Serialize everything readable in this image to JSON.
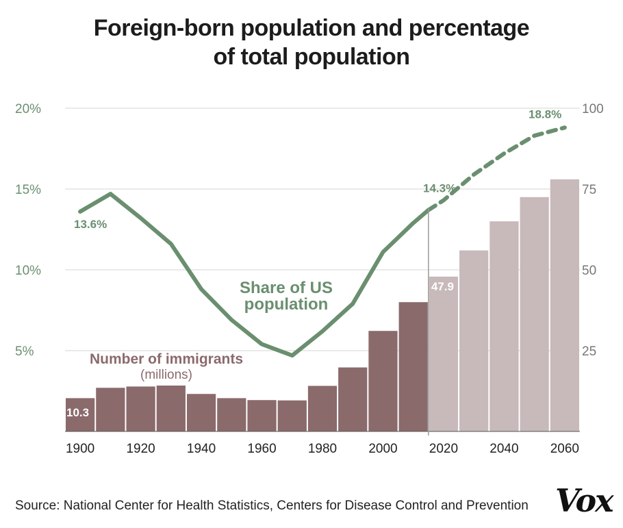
{
  "title_line1": "Foreign-born population and percentage",
  "title_line2": "of total population",
  "source": "Source: National Center for Health Statistics, Centers for Disease Control and Prevention",
  "logo": "Vox",
  "colors": {
    "actual_bar": "#8b6a6c",
    "projected_bar": "#c8b9ba",
    "line": "#6a8f6f",
    "grid": "#d6d6d6",
    "divider": "#9a9a9a"
  },
  "chart_data": {
    "type": "bar",
    "categories": [
      "1900",
      "1910",
      "1920",
      "1930",
      "1940",
      "1950",
      "1960",
      "1970",
      "1980",
      "1990",
      "2000",
      "2010",
      "2020",
      "2030",
      "2040",
      "2050",
      "2060"
    ],
    "x_tick_labels": [
      "1900",
      "1920",
      "1940",
      "1960",
      "1980",
      "2000",
      "2020",
      "2040",
      "2060"
    ],
    "left_axis_labels": [
      "5%",
      "10%",
      "15%",
      "20%"
    ],
    "right_axis_labels": [
      "25",
      "50",
      "75",
      "100"
    ],
    "left_axis_range": [
      0,
      20
    ],
    "right_axis_range": [
      0,
      100
    ],
    "grid": true,
    "series": [
      {
        "name": "Number of immigrants",
        "name_line2": "(millions)",
        "axis": "right",
        "values": [
          10.3,
          13.5,
          13.9,
          14.2,
          11.6,
          10.3,
          9.7,
          9.6,
          14.1,
          19.8,
          31.1,
          40.0,
          47.9,
          56.0,
          65.0,
          72.5,
          78.0
        ],
        "projected_from_index": 12
      },
      {
        "name": "Share of US",
        "name_line2": "population",
        "axis": "left",
        "type": "line",
        "x": [
          1900,
          1910,
          1920,
          1930,
          1940,
          1950,
          1960,
          1970,
          1980,
          1990,
          2000,
          2010,
          2015,
          2020,
          2030,
          2040,
          2050,
          2060
        ],
        "values": [
          13.6,
          14.7,
          13.2,
          11.6,
          8.8,
          6.9,
          5.4,
          4.7,
          6.2,
          7.9,
          11.1,
          12.9,
          13.7,
          14.3,
          15.9,
          17.2,
          18.3,
          18.8
        ],
        "projected_from_x": 2015
      }
    ],
    "annotations": [
      {
        "text": "13.6%",
        "series": "line"
      },
      {
        "text": "14.3%",
        "series": "line"
      },
      {
        "text": "18.8%",
        "series": "line"
      },
      {
        "text": "10.3",
        "series": "bar"
      },
      {
        "text": "47.9",
        "series": "bar"
      }
    ]
  }
}
